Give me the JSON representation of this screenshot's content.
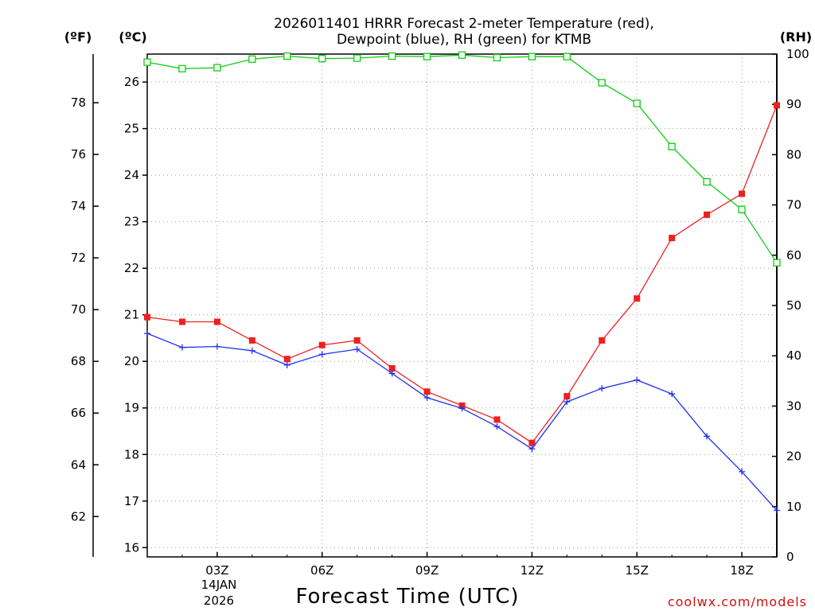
{
  "chart_data": {
    "type": "line",
    "title_line1": "2026011401 HRRR Forecast 2-meter Temperature (red),",
    "title_line2": "Dewpoint (blue), RH (green) for KTMB",
    "unit_f": "(ºF)",
    "unit_c": "(ºC)",
    "unit_rh": "(RH)",
    "xlabel": "Forecast Time (UTC)",
    "date_line1": "14JAN",
    "date_line2": "2026",
    "credit": "coolwx.com/models",
    "x": [
      1,
      2,
      3,
      4,
      5,
      6,
      7,
      8,
      9,
      10,
      11,
      12,
      13,
      14,
      15,
      16,
      17,
      18,
      19
    ],
    "xlim": [
      1,
      19
    ],
    "xticks": [
      {
        "x": 3,
        "label": "03Z"
      },
      {
        "x": 6,
        "label": "06Z"
      },
      {
        "x": 9,
        "label": "09Z"
      },
      {
        "x": 12,
        "label": "12Z"
      },
      {
        "x": 15,
        "label": "15Z"
      },
      {
        "x": 18,
        "label": "18Z"
      }
    ],
    "c_range": [
      15.8,
      26.6
    ],
    "c_ticks": [
      "16",
      "17",
      "18",
      "19",
      "20",
      "21",
      "22",
      "23",
      "24",
      "25",
      "26"
    ],
    "f_ticks": [
      "62",
      "64",
      "66",
      "68",
      "70",
      "72",
      "74",
      "76",
      "78"
    ],
    "rh_range": [
      0,
      100
    ],
    "rh_ticks": [
      "0",
      "10",
      "20",
      "30",
      "40",
      "50",
      "60",
      "70",
      "80",
      "90",
      "100"
    ],
    "series": [
      {
        "name": "Temperature",
        "unit": "C",
        "color": "#ee2020",
        "marker": "filled-square",
        "values": [
          20.95,
          20.85,
          20.85,
          20.45,
          20.05,
          20.35,
          20.45,
          19.85,
          19.35,
          19.05,
          18.75,
          18.25,
          19.25,
          20.45,
          21.35,
          22.65,
          23.15,
          23.6,
          25.5
        ]
      },
      {
        "name": "Dewpoint",
        "unit": "C",
        "color": "#2030ee",
        "marker": "plus",
        "values": [
          20.6,
          20.3,
          20.32,
          20.23,
          19.92,
          20.15,
          20.26,
          19.74,
          19.22,
          18.99,
          18.6,
          18.12,
          19.13,
          19.42,
          19.6,
          19.3,
          18.39,
          17.63,
          16.8
        ]
      },
      {
        "name": "RH",
        "unit": "%",
        "color": "#10cc10",
        "marker": "open-square",
        "values": [
          98.4,
          97.1,
          97.3,
          99.0,
          99.6,
          99.1,
          99.2,
          99.6,
          99.5,
          99.8,
          99.3,
          99.5,
          99.5,
          94.3,
          90.2,
          81.6,
          74.6,
          69.1,
          58.5
        ]
      }
    ]
  }
}
